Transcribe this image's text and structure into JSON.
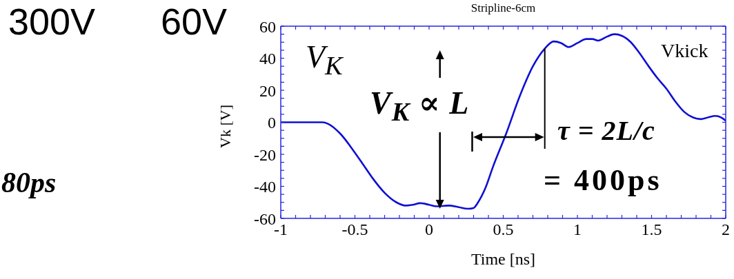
{
  "chart_data": {
    "type": "line",
    "title": "Stripline-6cm",
    "xlabel": "Time [ns]",
    "ylabel": "Vk [V]",
    "x": [
      -1,
      -0.72,
      -0.68,
      -0.6,
      -0.5,
      -0.44,
      -0.38,
      -0.3,
      -0.22,
      -0.16,
      -0.11,
      -0.06,
      0,
      0.05,
      0.13,
      0.2,
      0.26,
      0.3,
      0.33,
      0.38,
      0.43,
      0.52,
      0.61,
      0.7,
      0.78,
      0.84,
      0.89,
      0.94,
      1,
      1.06,
      1.1,
      1.14,
      1.2,
      1.25,
      1.3,
      1.36,
      1.42,
      1.48,
      1.54,
      1.6,
      1.66,
      1.72,
      1.78,
      1.83,
      1.88,
      1.93,
      1.97,
      2
    ],
    "series": [
      {
        "color": "#0f0fd4",
        "values": [
          0,
          0,
          -1,
          -7,
          -19,
          -27,
          -35,
          -44,
          -50,
          -52,
          -51.5,
          -50.5,
          -51.5,
          -52.5,
          -52,
          -53,
          -54,
          -53.5,
          -50,
          -41,
          -28,
          -7,
          16,
          35,
          46,
          50.5,
          49.5,
          47,
          49.5,
          52,
          52,
          51,
          53.5,
          55,
          54,
          50,
          43,
          35,
          27.5,
          21,
          13,
          6.5,
          3,
          2,
          3,
          4,
          3,
          1
        ]
      }
    ],
    "xlim": [
      -1,
      2
    ],
    "ylim": [
      -60,
      60
    ],
    "xticks": [
      -1,
      {
        "value": -0.9,
        "label": null
      },
      {
        "value": -0.8,
        "label": null
      },
      {
        "value": -0.7,
        "label": null
      },
      {
        "value": -0.6,
        "label": null
      },
      -0.5,
      {
        "value": -0.4,
        "label": null
      },
      {
        "value": -0.3,
        "label": null
      },
      {
        "value": -0.2,
        "label": null
      },
      {
        "value": -0.1,
        "label": null
      },
      0,
      {
        "value": 0.1,
        "label": null
      },
      {
        "value": 0.2,
        "label": null
      },
      {
        "value": 0.3,
        "label": null
      },
      {
        "value": 0.4,
        "label": null
      },
      0.5,
      {
        "value": 0.6,
        "label": null
      },
      {
        "value": 0.7,
        "label": null
      },
      {
        "value": 0.8,
        "label": null
      },
      {
        "value": 0.9,
        "label": null
      },
      1,
      {
        "value": 1.1,
        "label": null
      },
      {
        "value": 1.2,
        "label": null
      },
      {
        "value": 1.3,
        "label": null
      },
      {
        "value": 1.4,
        "label": null
      },
      1.5,
      {
        "value": 1.6,
        "label": null
      },
      {
        "value": 1.7,
        "label": null
      },
      {
        "value": 1.8,
        "label": null
      },
      {
        "value": 1.9,
        "label": null
      },
      2
    ],
    "yticks": [
      -60,
      {
        "value": -55,
        "label": null
      },
      {
        "value": -50,
        "label": null
      },
      {
        "value": -45,
        "label": null
      },
      -40,
      {
        "value": -35,
        "label": null
      },
      {
        "value": -30,
        "label": null
      },
      {
        "value": -25,
        "label": null
      },
      -20,
      {
        "value": -15,
        "label": null
      },
      {
        "value": -10,
        "label": null
      },
      {
        "value": -5,
        "label": null
      },
      0,
      {
        "value": 5,
        "label": null
      },
      {
        "value": 10,
        "label": null
      },
      {
        "value": 15,
        "label": null
      },
      20,
      {
        "value": 25,
        "label": null
      },
      {
        "value": 30,
        "label": null
      },
      {
        "value": 35,
        "label": null
      },
      40,
      {
        "value": 45,
        "label": null
      },
      {
        "value": 50,
        "label": null
      },
      {
        "value": 55,
        "label": null
      },
      60
    ],
    "marker": "none",
    "line_style": "solid",
    "annotations": [
      "300V",
      "60V",
      "80ps",
      "V$_{K}$",
      "V$_{K}$ ∝ L",
      "τ = 2L/c",
      {
        "text": "= 400ps",
        "x": 0.78,
        "y": 46
      },
      "Vkick"
    ]
  }
}
